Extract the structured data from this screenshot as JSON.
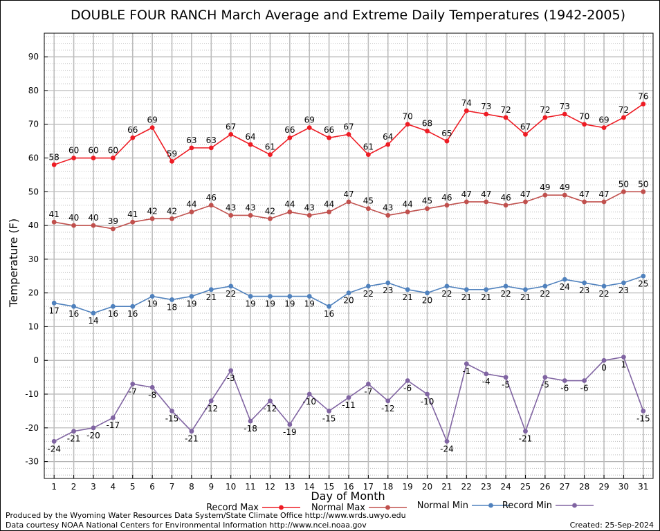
{
  "chart_data": {
    "type": "line",
    "title": "DOUBLE FOUR RANCH March Average and Extreme Daily Temperatures (1942-2005)",
    "xlabel": "Day of Month",
    "ylabel": "Temperature (F)",
    "ylim": [
      -35,
      97
    ],
    "yticks": [
      -30,
      -20,
      -10,
      0,
      10,
      20,
      30,
      40,
      50,
      60,
      70,
      80,
      90
    ],
    "x": [
      1,
      2,
      3,
      4,
      5,
      6,
      7,
      8,
      9,
      10,
      11,
      12,
      13,
      14,
      15,
      16,
      17,
      18,
      19,
      20,
      21,
      22,
      23,
      24,
      25,
      26,
      27,
      28,
      29,
      30,
      31
    ],
    "grid": true,
    "legend_position": "bottom",
    "series": [
      {
        "name": "Record Max",
        "color": "#ee1c24",
        "label_pos": "above",
        "values": [
          58,
          60,
          60,
          60,
          66,
          69,
          59,
          63,
          63,
          67,
          64,
          61,
          66,
          69,
          66,
          67,
          61,
          64,
          70,
          68,
          65,
          74,
          73,
          72,
          67,
          72,
          73,
          70,
          69,
          72,
          76
        ]
      },
      {
        "name": "Normal Max",
        "color": "#c0504d",
        "label_pos": "above",
        "values": [
          41,
          40,
          40,
          39,
          41,
          42,
          42,
          44,
          46,
          43,
          43,
          42,
          44,
          43,
          44,
          47,
          45,
          43,
          44,
          45,
          46,
          47,
          47,
          46,
          47,
          49,
          49,
          47,
          47,
          50,
          50
        ]
      },
      {
        "name": "Normal Min",
        "color": "#4f81bd",
        "label_pos": "below",
        "values": [
          17,
          16,
          14,
          16,
          16,
          19,
          18,
          19,
          21,
          22,
          19,
          19,
          19,
          19,
          16,
          20,
          22,
          23,
          21,
          20,
          22,
          21,
          21,
          22,
          21,
          22,
          24,
          23,
          22,
          23,
          25
        ]
      },
      {
        "name": "Record Min",
        "color": "#8064a2",
        "label_pos": "below",
        "values": [
          -24,
          -21,
          -20,
          -17,
          -7,
          -8,
          -15,
          -21,
          -12,
          -3,
          -18,
          -12,
          -19,
          -10,
          -15,
          -11,
          -7,
          -12,
          -6,
          -10,
          -24,
          -1,
          -4,
          -5,
          -21,
          -5,
          -6,
          -6,
          0,
          1,
          -15
        ]
      }
    ]
  },
  "footer": {
    "produced_by": "Produced by the Wyoming Water Resources Data System/State Climate Office http://www.wrds.uwyo.edu",
    "courtesy": "Data courtesy NOAA National Centers for Environmental Information http://www.ncei.noaa.gov",
    "created": "Created:  25-Sep-2024"
  }
}
